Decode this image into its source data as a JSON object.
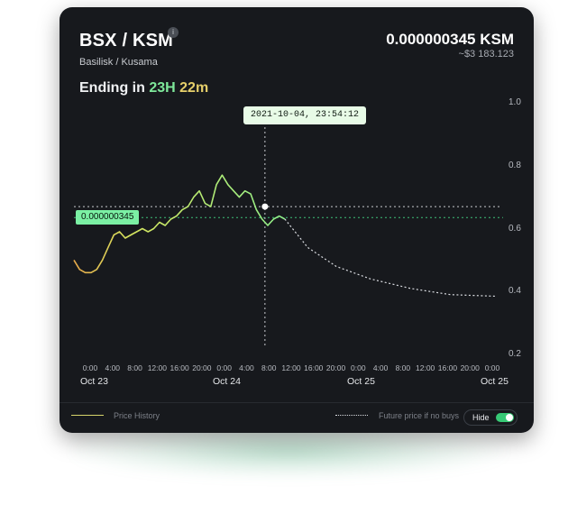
{
  "header": {
    "pair": "BSX / KSM",
    "info_icon": "i",
    "subtitle": "Basilisk / Kusama",
    "price": "0.000000345 KSM",
    "usd": "~$3 183.123"
  },
  "ending": {
    "label": "Ending in",
    "hours": "23H",
    "minutes": "22m"
  },
  "tooltip": "2021-10-04, 23:54:12",
  "price_tag": "0.000000345",
  "legend": {
    "history": "Price History",
    "future": "Future price if no buys",
    "hide_label": "Hide",
    "hide_on": true
  },
  "colors": {
    "history_line": "#d8e55e",
    "future_line": "#d9dbe0",
    "accent": "#7bf0a4",
    "toggle": "#37c975"
  },
  "chart_data": {
    "type": "line",
    "y_ticks": [
      "1.0",
      "0.8",
      "0.6",
      "0.4",
      "0.2"
    ],
    "ylim": [
      0.2,
      1.0
    ],
    "x_ticks": [
      "0:00",
      "4:00",
      "8:00",
      "12:00",
      "16:00",
      "20:00",
      "0:00",
      "4:00",
      "8:00",
      "12:00",
      "16:00",
      "20:00",
      "0:00",
      "4:00",
      "8:00",
      "12:00",
      "16:00",
      "20:00",
      "0:00"
    ],
    "date_labels": [
      "Oct 23",
      "Oct 24",
      "Oct 25",
      "Oct 25"
    ],
    "current_price_level": 0.635,
    "series": [
      {
        "name": "Price History",
        "points": [
          [
            0,
            0.5
          ],
          [
            1,
            0.47
          ],
          [
            2,
            0.46
          ],
          [
            3,
            0.46
          ],
          [
            4,
            0.47
          ],
          [
            5,
            0.5
          ],
          [
            6,
            0.54
          ],
          [
            7,
            0.58
          ],
          [
            8,
            0.59
          ],
          [
            9,
            0.57
          ],
          [
            10,
            0.58
          ],
          [
            11,
            0.59
          ],
          [
            12,
            0.6
          ],
          [
            13,
            0.59
          ],
          [
            14,
            0.6
          ],
          [
            15,
            0.62
          ],
          [
            16,
            0.61
          ],
          [
            17,
            0.63
          ],
          [
            18,
            0.64
          ],
          [
            19,
            0.66
          ],
          [
            20,
            0.67
          ],
          [
            21,
            0.7
          ],
          [
            22,
            0.72
          ],
          [
            23,
            0.68
          ],
          [
            24,
            0.67
          ],
          [
            25,
            0.74
          ],
          [
            26,
            0.77
          ],
          [
            27,
            0.74
          ],
          [
            28,
            0.72
          ],
          [
            29,
            0.7
          ],
          [
            30,
            0.72
          ],
          [
            31,
            0.71
          ],
          [
            32,
            0.66
          ],
          [
            33,
            0.63
          ],
          [
            34,
            0.61
          ],
          [
            35,
            0.63
          ],
          [
            36,
            0.64
          ],
          [
            37,
            0.63
          ]
        ]
      },
      {
        "name": "Future price if no buys",
        "points": [
          [
            37,
            0.63
          ],
          [
            41,
            0.54
          ],
          [
            46,
            0.48
          ],
          [
            52,
            0.44
          ],
          [
            59,
            0.41
          ],
          [
            66,
            0.39
          ],
          [
            74,
            0.385
          ]
        ]
      }
    ]
  }
}
